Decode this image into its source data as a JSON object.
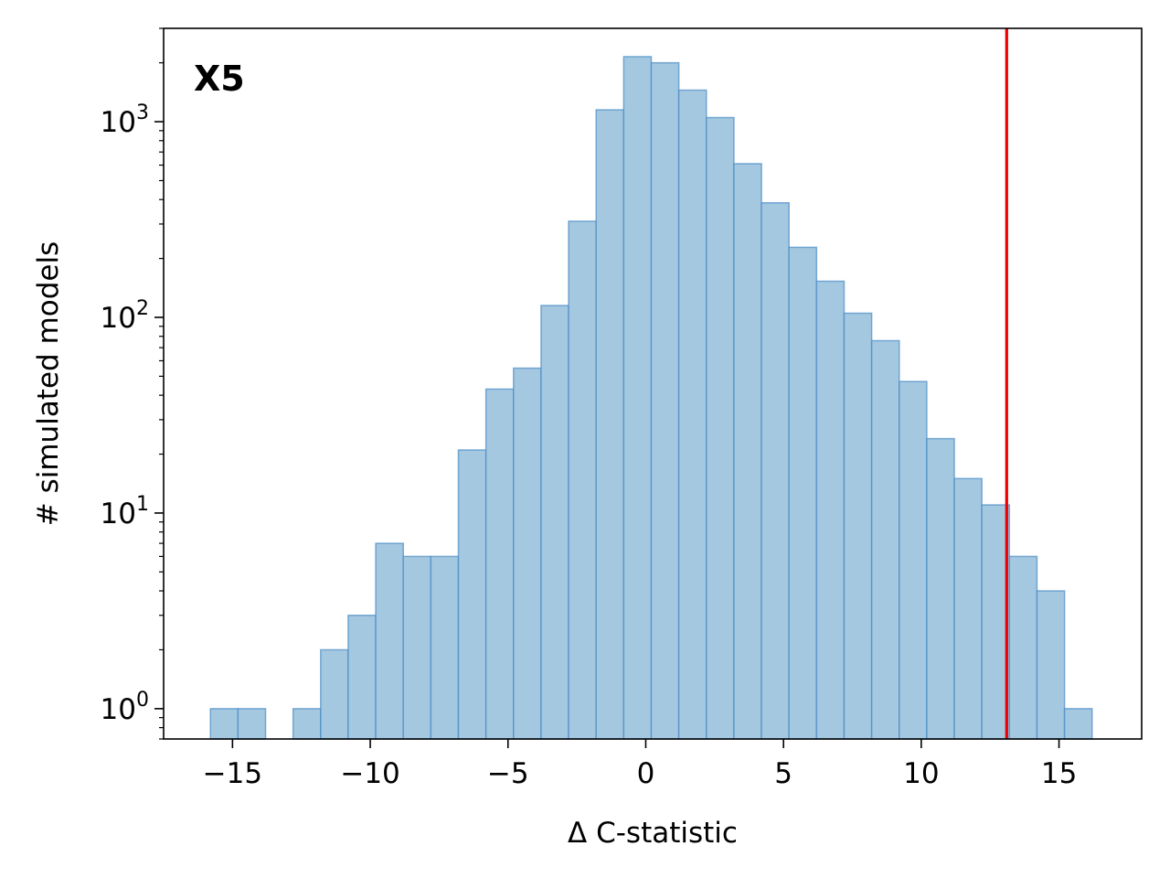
{
  "chart_data": {
    "type": "bar",
    "panel_label": "X5",
    "xlabel": "Δ C-statistic",
    "ylabel": "# simulated models",
    "yscale": "log",
    "xlim": [
      -17.5,
      18
    ],
    "ylim": [
      0.7,
      3000
    ],
    "xticks": [
      -15,
      -10,
      -5,
      0,
      5,
      10,
      15
    ],
    "xtick_labels": [
      "−15",
      "−10",
      "−5",
      "0",
      "5",
      "10",
      "15"
    ],
    "yticks": [
      {
        "base": "10",
        "exp": "0"
      },
      {
        "base": "10",
        "exp": "1"
      },
      {
        "base": "10",
        "exp": "2"
      },
      {
        "base": "10",
        "exp": "3"
      }
    ],
    "bin_edges": [
      -15.8,
      -14.8,
      -13.8,
      -12.8,
      -11.8,
      -10.8,
      -9.8,
      -8.8,
      -7.8,
      -6.8,
      -5.8,
      -4.8,
      -3.8,
      -2.8,
      -1.8,
      -0.8,
      0.2,
      1.2,
      2.2,
      3.2,
      4.2,
      5.2,
      6.2,
      7.2,
      8.2,
      9.2,
      10.2,
      11.2,
      12.2,
      13.2,
      14.2,
      15.2,
      16.2
    ],
    "counts": [
      1,
      1,
      0,
      1,
      2,
      3,
      7,
      6,
      6,
      21,
      43,
      55,
      115,
      310,
      1150,
      2150,
      2000,
      1450,
      1050,
      610,
      385,
      228,
      153,
      105,
      76,
      47,
      24,
      15,
      11,
      6,
      4,
      1
    ],
    "observed_line": 13.1,
    "bar_color": "#a5c8e1",
    "bar_edge_color": "#4a8cc4",
    "line_color": "#ee0000",
    "grid": false
  }
}
